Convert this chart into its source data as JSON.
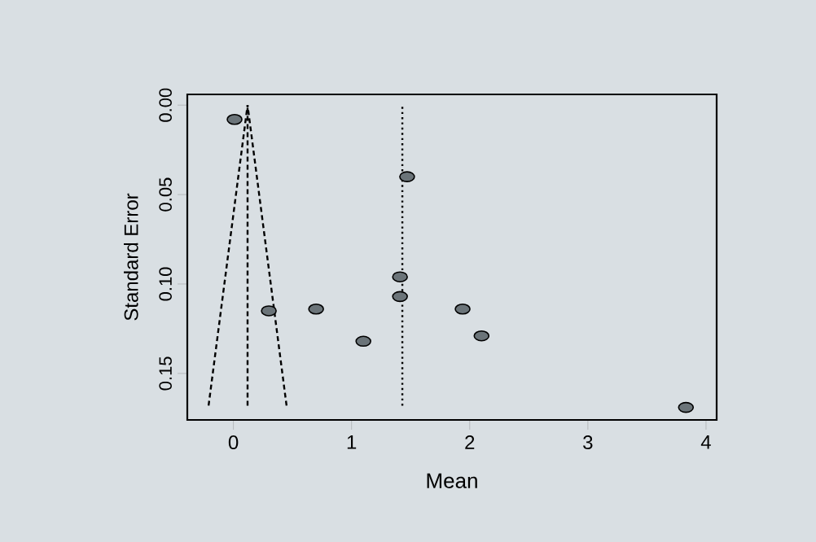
{
  "chart_data": {
    "type": "scatter",
    "xlabel": "Mean",
    "ylabel": "Standard Error",
    "xlim": [
      -0.39,
      4.09
    ],
    "ylim": [
      0.176,
      -0.006
    ],
    "xticks": [
      0,
      1,
      2,
      3,
      4
    ],
    "yticks": [
      {
        "value": 0,
        "label": "0.00"
      },
      {
        "value": 0.05,
        "label": "0.05"
      },
      {
        "value": 0.1,
        "label": "0.10"
      },
      {
        "value": 0.15,
        "label": "0.15"
      }
    ],
    "grid": false,
    "marker": "circle",
    "series": [
      {
        "color": "#6b7479",
        "x": [
          0.01,
          1.47,
          1.41,
          1.41,
          0.3,
          0.7,
          1.1,
          1.94,
          2.1,
          3.83
        ],
        "values": [
          0.008,
          0.04,
          0.096,
          0.107,
          0.115,
          0.114,
          0.132,
          0.114,
          0.129,
          0.169
        ]
      },
      {
        "type": "line",
        "color": "#000000",
        "line_style": "dashed",
        "marker": "none",
        "x": [
          -0.21,
          0.12
        ],
        "values": [
          0.168,
          0
        ]
      },
      {
        "type": "line",
        "color": "#000000",
        "line_style": "dashed",
        "marker": "none",
        "x": [
          0.45,
          0.12
        ],
        "values": [
          0.168,
          0
        ]
      },
      {
        "type": "line",
        "color": "#000000",
        "line_style": "dashed",
        "marker": "none",
        "x": [
          0.12,
          0.12
        ],
        "values": [
          0.168,
          0
        ]
      },
      {
        "type": "line",
        "color": "#000000",
        "line_style": "dotted",
        "marker": "none",
        "x": [
          1.43,
          1.43
        ],
        "values": [
          0.168,
          0
        ]
      }
    ]
  }
}
